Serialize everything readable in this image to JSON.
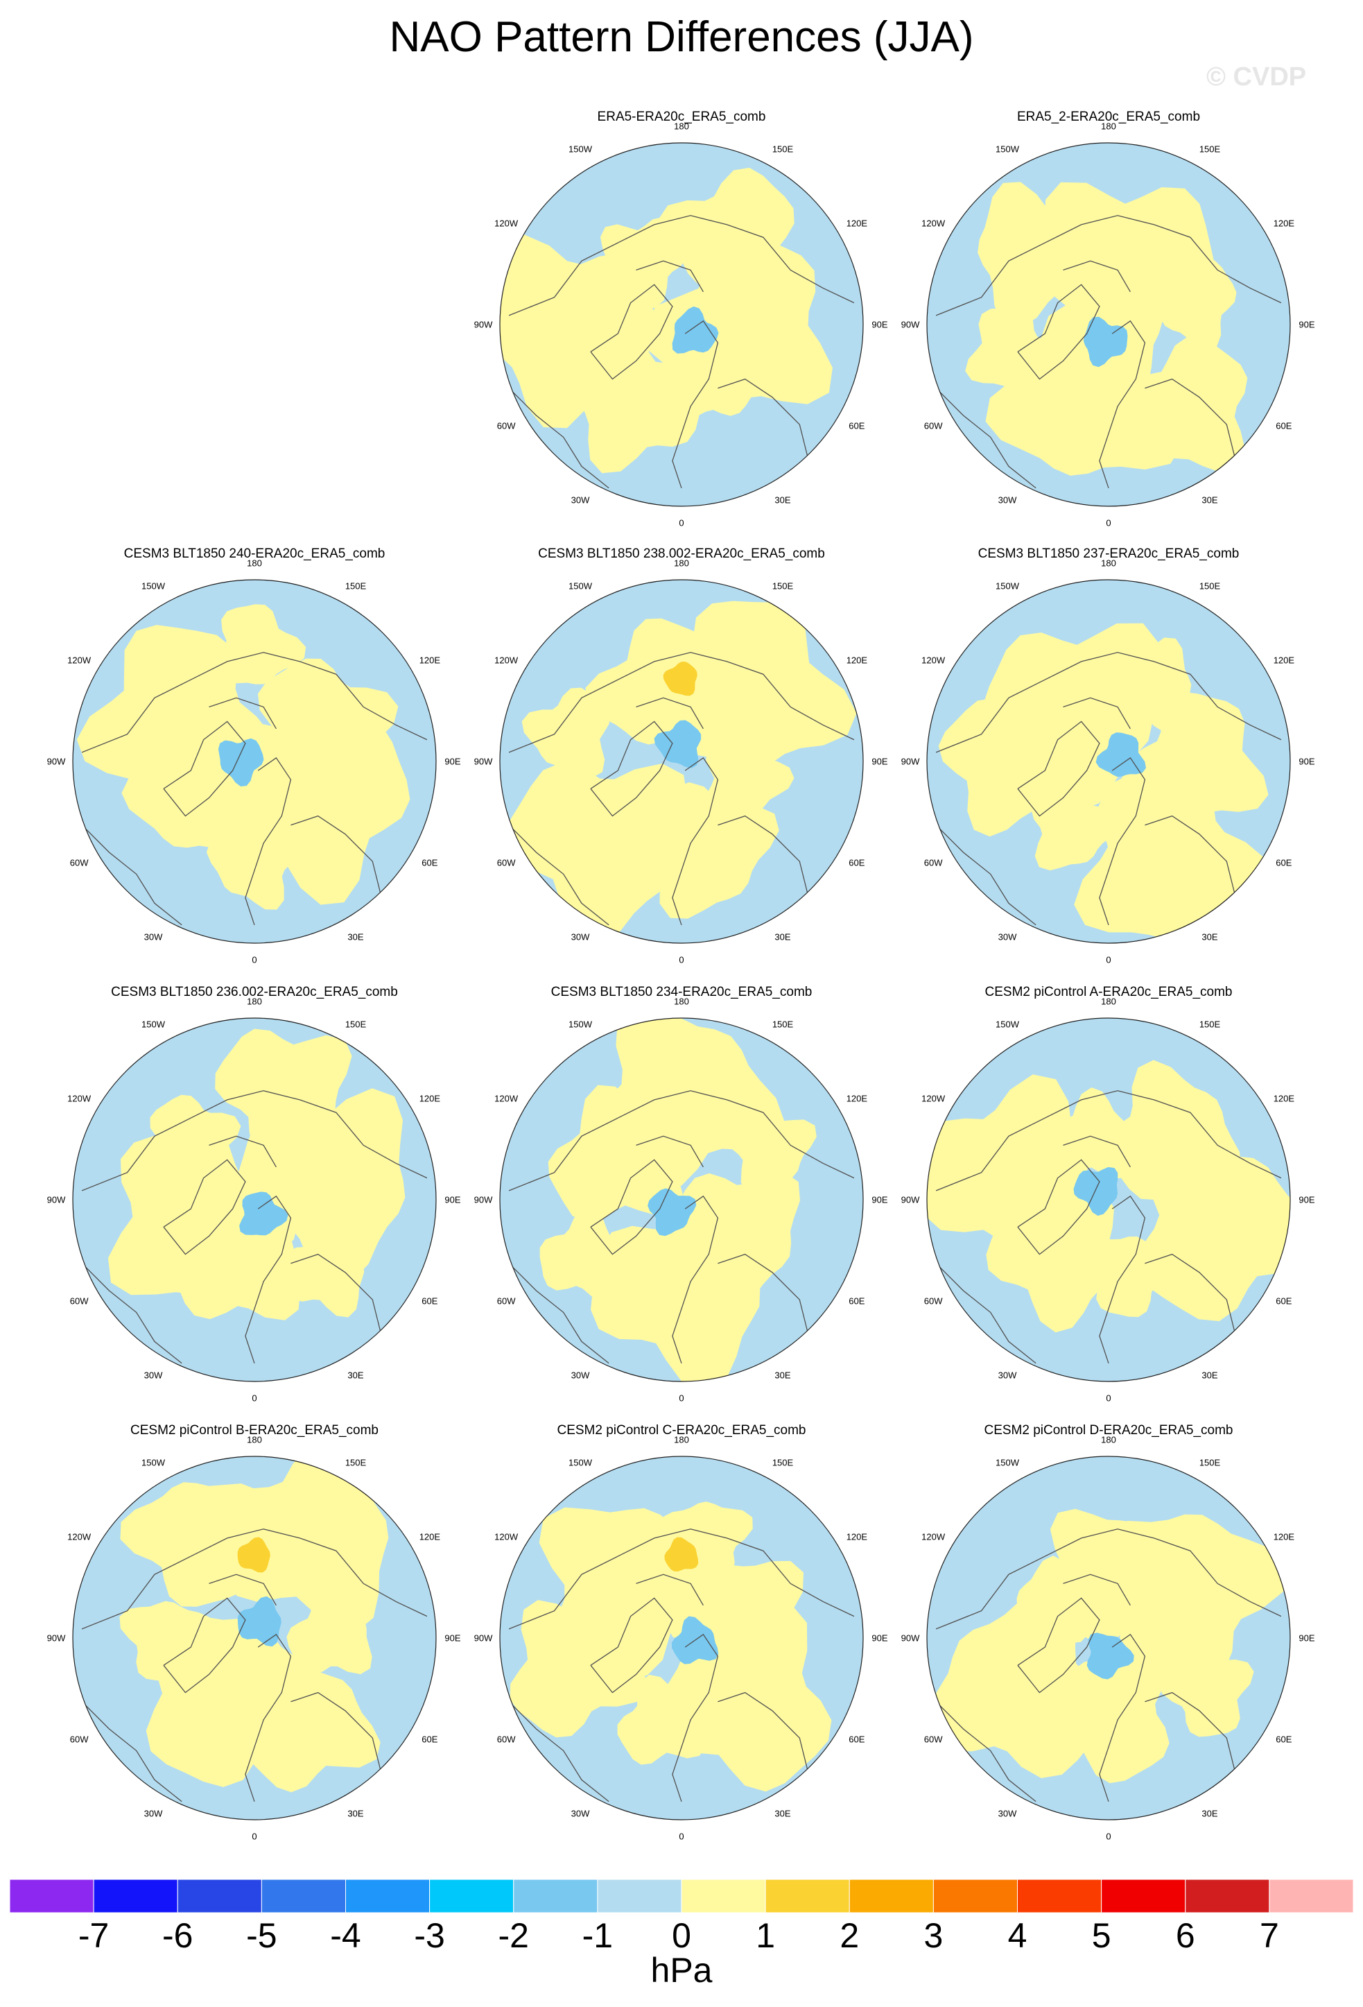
{
  "title": "NAO Pattern Differences (JJA)",
  "watermark": "© CVDP",
  "colors": {
    "neg1": "#b4dcf0",
    "neg2": "#78c8f0",
    "pos1": "#fffaa0",
    "pos2": "#fad232",
    "coast": "#505050",
    "border": "#202020"
  },
  "lon_labels": {
    "top": "180",
    "bottom": "0",
    "ur": "150E",
    "ul": "150W",
    "r1": "120E",
    "l1": "120W",
    "r2": "90E",
    "l2": "90W",
    "r3": "60E",
    "l3": "60W",
    "lr": "30E",
    "ll": "30W"
  },
  "panels": [
    {
      "title": "ERA5-ERA20c_ERA5_comb"
    },
    {
      "title": "ERA5_2-ERA20c_ERA5_comb"
    },
    {
      "title": "CESM3 BLT1850 240-ERA20c_ERA5_comb"
    },
    {
      "title": "CESM3 BLT1850 238.002-ERA20c_ERA5_comb"
    },
    {
      "title": "CESM3 BLT1850 237-ERA20c_ERA5_comb"
    },
    {
      "title": "CESM3 BLT1850 236.002-ERA20c_ERA5_comb"
    },
    {
      "title": "CESM3 BLT1850 234-ERA20c_ERA5_comb"
    },
    {
      "title": "CESM2 piControl A-ERA20c_ERA5_comb"
    },
    {
      "title": "CESM2 piControl B-ERA20c_ERA5_comb"
    },
    {
      "title": "CESM2 piControl C-ERA20c_ERA5_comb"
    },
    {
      "title": "CESM2 piControl D-ERA20c_ERA5_comb"
    }
  ],
  "colorbar": {
    "units": "hPa",
    "ticks": [
      "-7",
      "-6",
      "-5",
      "-4",
      "-3",
      "-2",
      "-1",
      "0",
      "1",
      "2",
      "3",
      "4",
      "5",
      "6",
      "7"
    ],
    "colors": [
      "#8c28f0",
      "#1414fa",
      "#2846e6",
      "#3278ec",
      "#1e96fa",
      "#00c8fa",
      "#78c8f0",
      "#b4dcf0",
      "#fffaa0",
      "#fad232",
      "#faaa00",
      "#fa7800",
      "#fa3c00",
      "#f00000",
      "#d21e1e",
      "#ffb4b4"
    ]
  }
}
